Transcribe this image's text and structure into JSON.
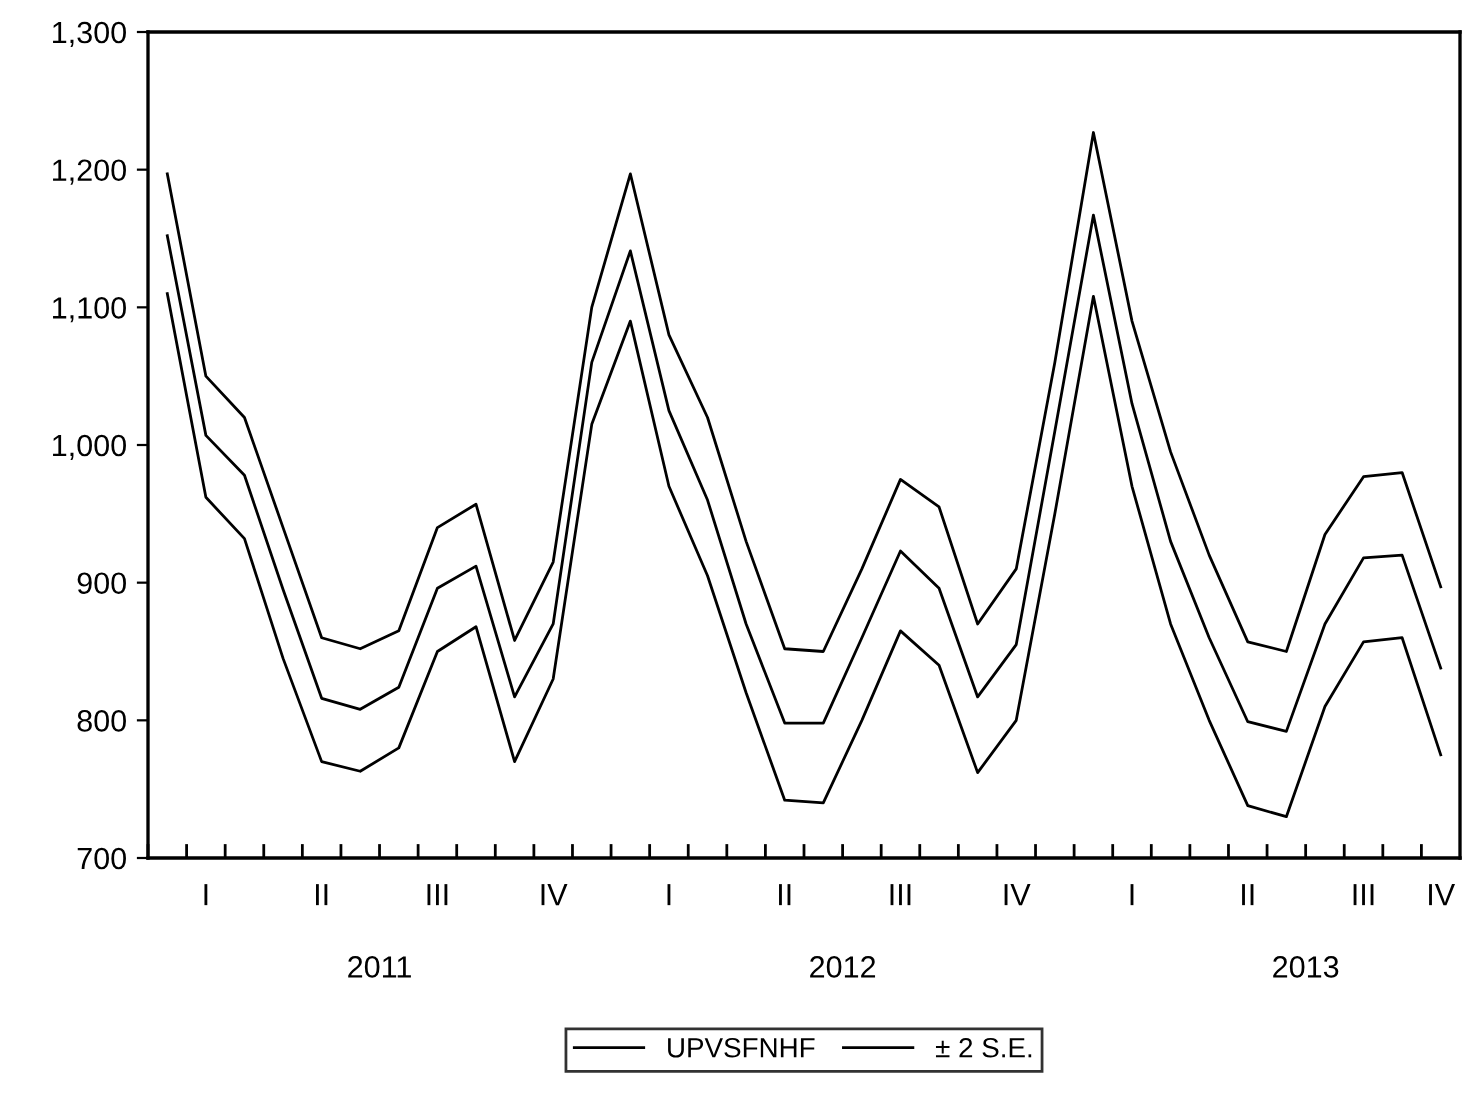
{
  "chart_data": {
    "type": "line",
    "categories": [
      null,
      "I",
      null,
      null,
      "II",
      null,
      null,
      "III",
      null,
      null,
      "IV",
      null,
      null,
      "I",
      null,
      null,
      "II",
      null,
      null,
      "III",
      null,
      null,
      "IV",
      null,
      null,
      "I",
      null,
      null,
      "II",
      null,
      null,
      "III",
      null,
      "IV"
    ],
    "series": [
      {
        "name": "UPVSFNHF",
        "color": "#000000",
        "values": [
          1152,
          1007,
          978,
          895,
          816,
          808,
          824,
          896,
          912,
          817,
          870,
          1060,
          1141,
          1025,
          960,
          870,
          798,
          798,
          860,
          923,
          896,
          817,
          855,
          1010,
          1167,
          1030,
          930,
          860,
          799,
          792,
          870,
          918,
          920,
          838
        ]
      },
      {
        "name": "± 2 S.E.",
        "color": "#000000",
        "values": [
          1197,
          1050,
          1020,
          940,
          860,
          852,
          865,
          940,
          957,
          858,
          915,
          1100,
          1197,
          1080,
          1020,
          930,
          852,
          850,
          910,
          975,
          955,
          870,
          910,
          1060,
          1227,
          1090,
          995,
          920,
          857,
          850,
          935,
          977,
          980,
          897
        ]
      },
      {
        "color": "#000000",
        "values": [
          1110,
          962,
          932,
          845,
          770,
          763,
          780,
          850,
          868,
          770,
          830,
          1015,
          1090,
          970,
          905,
          820,
          742,
          740,
          800,
          865,
          840,
          762,
          800,
          950,
          1108,
          970,
          870,
          800,
          738,
          730,
          810,
          857,
          860,
          775
        ]
      }
    ],
    "annotations": [
      "2011",
      "2012",
      "2013"
    ],
    "ylim": [
      700,
      1300
    ],
    "yticks": [
      {
        "value": 700,
        "label": "700"
      },
      {
        "value": 800,
        "label": "800"
      },
      {
        "value": 900,
        "label": "900"
      },
      {
        "value": 1000,
        "label": "1,000"
      },
      {
        "value": 1100,
        "label": "1,100"
      },
      {
        "value": 1200,
        "label": "1,200"
      },
      {
        "value": 1300,
        "label": "1,300"
      }
    ],
    "legend": "bottom",
    "marker": "none",
    "line_style": "solid"
  }
}
